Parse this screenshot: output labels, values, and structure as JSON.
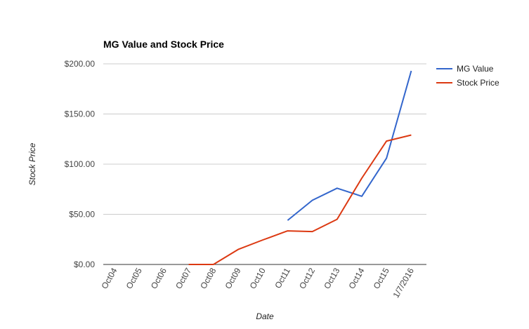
{
  "chart_data": {
    "type": "line",
    "title": "MG Value and Stock Price",
    "xlabel": "Date",
    "ylabel": "Stock Price",
    "categories": [
      "Oct04",
      "Oct05",
      "Oct06",
      "Oct07",
      "Oct08",
      "Oct09",
      "Oct10",
      "Oct11",
      "Oct12",
      "Oct13",
      "Oct14",
      "Oct15",
      "1/7/2016"
    ],
    "ylim": [
      0,
      200
    ],
    "yticks": [
      "$0.00",
      "$50.00",
      "$100.00",
      "$150.00",
      "$200.00"
    ],
    "grid": true,
    "legend": "right",
    "series": [
      {
        "name": "MG Value",
        "color": "#3366cc",
        "values": [
          null,
          null,
          null,
          null,
          null,
          null,
          null,
          44,
          64,
          76,
          68,
          106,
          193
        ]
      },
      {
        "name": "Stock Price",
        "color": "#dc3912",
        "values": [
          null,
          null,
          null,
          0,
          0,
          15,
          24.5,
          33.5,
          32.8,
          45,
          86,
          123,
          129
        ]
      }
    ]
  }
}
